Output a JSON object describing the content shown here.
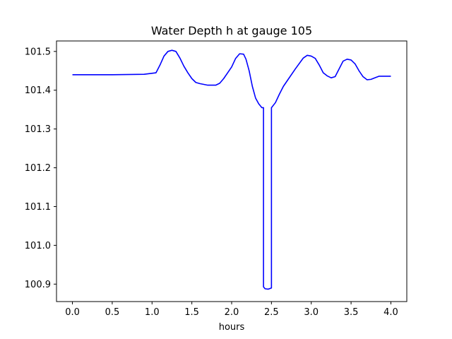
{
  "chart_data": {
    "type": "line",
    "title": "Water Depth h at gauge 105",
    "xlabel": "hours",
    "ylabel": "",
    "xlim": [
      -0.2,
      4.2
    ],
    "ylim": [
      100.855,
      101.527
    ],
    "x_ticks": [
      0.0,
      0.5,
      1.0,
      1.5,
      2.0,
      2.5,
      3.0,
      3.5,
      4.0
    ],
    "x_tick_labels": [
      "0.0",
      "0.5",
      "1.0",
      "1.5",
      "2.0",
      "2.5",
      "3.0",
      "3.5",
      "4.0"
    ],
    "y_ticks": [
      100.9,
      101.0,
      101.1,
      101.2,
      101.3,
      101.4,
      101.5
    ],
    "y_tick_labels": [
      "100.9",
      "101.0",
      "101.1",
      "101.2",
      "101.3",
      "101.4",
      "101.5"
    ],
    "grid": false,
    "legend": "none",
    "series": [
      {
        "color": "#0000ff",
        "x": [
          0.0,
          0.5,
          0.9,
          1.05,
          1.1,
          1.15,
          1.2,
          1.25,
          1.3,
          1.35,
          1.4,
          1.45,
          1.5,
          1.55,
          1.6,
          1.7,
          1.8,
          1.85,
          1.9,
          1.95,
          2.0,
          2.05,
          2.1,
          2.15,
          2.18,
          2.22,
          2.26,
          2.3,
          2.34,
          2.38,
          2.4,
          2.4,
          2.42,
          2.46,
          2.5,
          2.5,
          2.55,
          2.6,
          2.65,
          2.7,
          2.8,
          2.9,
          2.95,
          3.0,
          3.05,
          3.1,
          3.15,
          3.2,
          3.25,
          3.3,
          3.35,
          3.4,
          3.45,
          3.5,
          3.55,
          3.6,
          3.65,
          3.7,
          3.75,
          3.8,
          3.85,
          3.9,
          3.95,
          4.0
        ],
        "y": [
          101.44,
          101.44,
          101.441,
          101.445,
          101.465,
          101.488,
          101.5,
          101.503,
          101.5,
          101.483,
          101.462,
          101.445,
          101.43,
          101.42,
          101.417,
          101.413,
          101.413,
          101.418,
          101.43,
          101.445,
          101.46,
          101.482,
          101.494,
          101.493,
          101.48,
          101.45,
          101.41,
          101.38,
          101.365,
          101.355,
          101.355,
          100.893,
          100.888,
          100.887,
          100.89,
          101.355,
          101.368,
          101.39,
          101.41,
          101.425,
          101.455,
          101.483,
          101.49,
          101.488,
          101.482,
          101.465,
          101.445,
          101.437,
          101.432,
          101.435,
          101.455,
          101.475,
          101.48,
          101.478,
          101.468,
          101.45,
          101.435,
          101.427,
          101.428,
          101.432,
          101.436,
          101.436,
          101.436,
          101.436
        ]
      }
    ]
  }
}
